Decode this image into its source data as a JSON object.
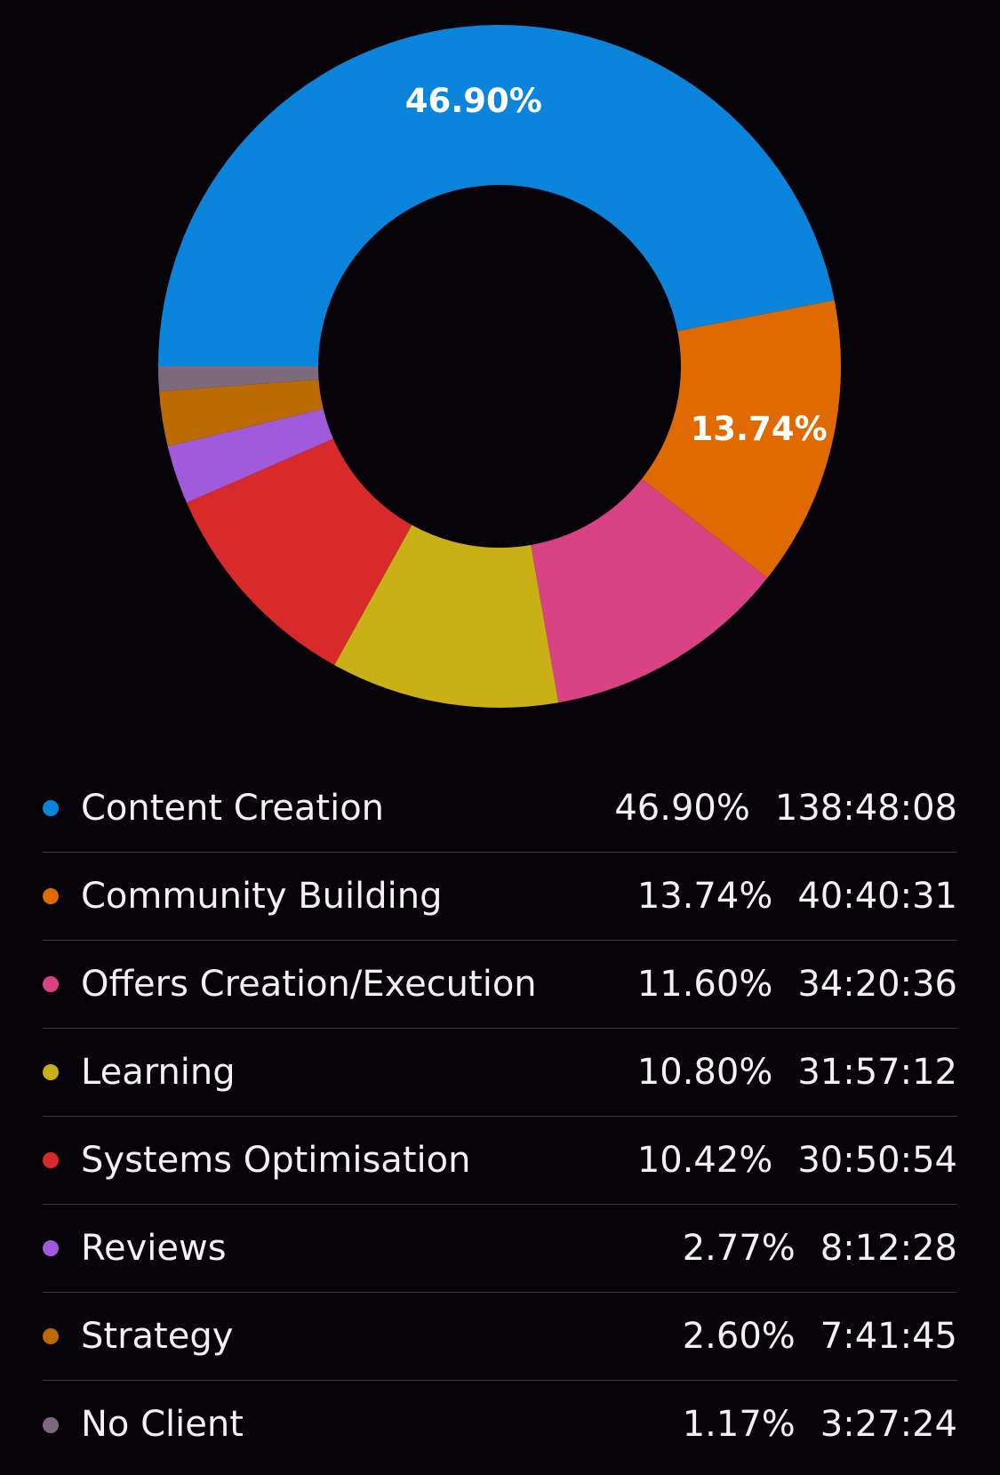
{
  "chart_data": {
    "type": "pie",
    "variant": "donut",
    "categories": [
      "Content Creation",
      "Community Building",
      "Offers Creation/Execution",
      "Learning",
      "Systems Optimisation",
      "Reviews",
      "Strategy",
      "No Client"
    ],
    "values": [
      46.9,
      13.74,
      11.6,
      10.8,
      10.42,
      2.77,
      2.6,
      1.17
    ],
    "percent_labels": [
      "46.90%",
      "13.74%",
      "11.60%",
      "10.80%",
      "10.42%",
      "2.77%",
      "2.60%",
      "1.17%"
    ],
    "durations": [
      "138:48:08",
      "40:40:31",
      "34:20:36",
      "31:57:12",
      "30:50:54",
      "8:12:28",
      "7:41:45",
      "3:27:24"
    ],
    "colors": [
      "#0b84dc",
      "#e06a00",
      "#d94383",
      "#c8b016",
      "#d8292b",
      "#a15adc",
      "#bb6b00",
      "#7c6a7c"
    ],
    "slice_labels_shown": [
      true,
      true,
      false,
      false,
      false,
      false,
      false,
      false
    ],
    "legend_position": "bottom",
    "start_angle_deg": 180,
    "direction": "clockwise"
  }
}
